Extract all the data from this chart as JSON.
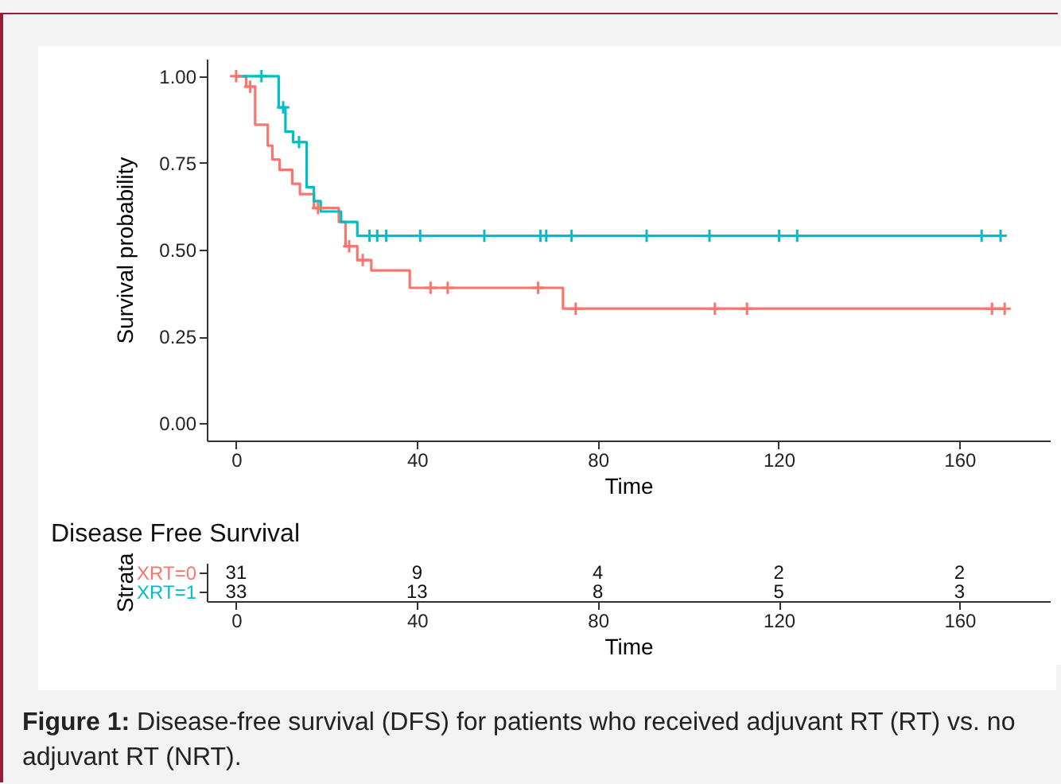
{
  "chart_data": [
    {
      "type": "step",
      "xlabel": "Time",
      "ylabel": "Survival probability",
      "xlim": [
        -6.5,
        180
      ],
      "ylim": [
        -0.05,
        1.05
      ],
      "xticks": [
        0,
        40,
        80,
        120,
        160
      ],
      "yticks": [
        {
          "value": 0,
          "label": "0.00"
        },
        {
          "value": 0.25,
          "label": "0.25"
        },
        {
          "value": 0.5,
          "label": "0.50"
        },
        {
          "value": 0.75,
          "label": "0.75"
        },
        {
          "value": 1,
          "label": "1.00"
        }
      ],
      "series": [
        {
          "type": "step",
          "color": "#f8766d",
          "x": [
            0,
            2.2,
            4.2,
            7.0,
            8.0,
            9.6,
            12.4,
            14.1,
            17.2,
            22.7,
            24.2,
            26.8,
            29.9,
            38.4,
            72.3,
            170
          ],
          "values": [
            1,
            0.97,
            0.86,
            0.8,
            0.76,
            0.73,
            0.69,
            0.66,
            0.62,
            0.58,
            0.51,
            0.47,
            0.44,
            0.39,
            0.33,
            0.33
          ]
        },
        {
          "type": "step",
          "color": "#00bfc4",
          "x": [
            0,
            9.4,
            10.9,
            12.6,
            15.6,
            17.2,
            18.7,
            23.2,
            26.8,
            169.1
          ],
          "values": [
            1,
            0.91,
            0.84,
            0.81,
            0.68,
            0.64,
            0.61,
            0.58,
            0.54,
            0.54
          ]
        },
        {
          "type": "scatter",
          "marker": "cross",
          "color": "#f8766d",
          "x": [
            0,
            3.1,
            18.1,
            25,
            28,
            43,
            46.8,
            66.8,
            75.1,
            105.9,
            113,
            167.2,
            170
          ],
          "values": [
            1,
            0.97,
            0.62,
            0.51,
            0.47,
            0.39,
            0.39,
            0.39,
            0.33,
            0.33,
            0.33,
            0.33,
            0.33
          ]
        },
        {
          "type": "scatter",
          "marker": "cross",
          "color": "#00bfc4",
          "x": [
            5.6,
            10.4,
            13.9,
            29.5,
            31.2,
            33.2,
            40.7,
            54.9,
            67.3,
            68.6,
            74.2,
            90.8,
            104.7,
            120.1,
            124.1,
            164.9,
            169.1
          ],
          "values": [
            1,
            0.91,
            0.81,
            0.54,
            0.54,
            0.54,
            0.54,
            0.54,
            0.54,
            0.54,
            0.54,
            0.54,
            0.54,
            0.54,
            0.54,
            0.54,
            0.54
          ]
        }
      ]
    },
    {
      "type": "heatmap",
      "title": "Disease Free Survival",
      "xlabel": "Time",
      "ylabel": "Strata",
      "categories": [
        "0",
        "40",
        "80",
        "120",
        "160"
      ],
      "y_categories": [
        "XRT=0",
        "XRT=1"
      ],
      "data_labels": true,
      "cells": [
        [
          31,
          9,
          4,
          2,
          2
        ],
        [
          33,
          13,
          8,
          5,
          3
        ]
      ],
      "annotations": [
        "Figure 1: Disease-free survival (DFS) for patients who received adjuvant RT (RT) vs. no adjuvant RT (NRT)."
      ]
    }
  ]
}
